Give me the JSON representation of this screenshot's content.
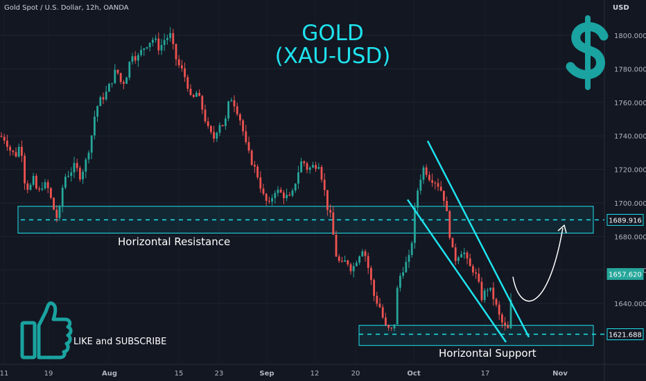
{
  "header": {
    "symbol_line": "Gold Spot / U.S. Dollar, 12h, OANDA",
    "currency": "USD"
  },
  "title": {
    "line1": "GOLD",
    "line2": "(XAU-USD)"
  },
  "annotations": {
    "resistance": "Horizontal Resistance",
    "support": "Horizontal Support",
    "like": "LIKE and SUBSCRIBE"
  },
  "icons": [
    "dollar-sign-icon",
    "thumbs-up-icon"
  ],
  "colors": {
    "background": "#131722",
    "up_candle": "#26a69a",
    "down_candle": "#ef5350",
    "accent": "#1ee3ee",
    "dollar": "#1aa3a0"
  },
  "chart_data": {
    "type": "candlestick",
    "title": "GOLD (XAU-USD)",
    "ylabel": "USD",
    "ylim": [
      1616.8,
      1821.2
    ],
    "y_ticks": [
      "1800.000",
      "1780.000",
      "1760.000",
      "1740.000",
      "1720.000",
      "1700.000",
      "1680.000",
      "1660.000",
      "1640.000"
    ],
    "x_ticks": [
      "11",
      "19",
      "Aug",
      "15",
      "23",
      "Sep",
      "12",
      "20",
      "Oct",
      "17",
      "Nov"
    ],
    "price_labels": {
      "resistance": "1689.916",
      "current": "1657.620",
      "support": "1621.688"
    },
    "levels": {
      "resistance": 1689.916,
      "current": 1657.62,
      "support": 1621.688,
      "resistance_zone": [
        1682,
        1698
      ],
      "support_zone": [
        1615,
        1627
      ]
    },
    "price_path": [
      [
        0,
        1740
      ],
      [
        8,
        1738
      ],
      [
        14,
        1732
      ],
      [
        22,
        1728
      ],
      [
        30,
        1736
      ],
      [
        36,
        1712
      ],
      [
        42,
        1708
      ],
      [
        48,
        1714
      ],
      [
        55,
        1705
      ],
      [
        62,
        1712
      ],
      [
        70,
        1708
      ],
      [
        76,
        1698
      ],
      [
        84,
        1689
      ],
      [
        92,
        1715
      ],
      [
        100,
        1718
      ],
      [
        108,
        1722
      ],
      [
        116,
        1716
      ],
      [
        124,
        1725
      ],
      [
        132,
        1740
      ],
      [
        138,
        1756
      ],
      [
        146,
        1762
      ],
      [
        154,
        1766
      ],
      [
        160,
        1772
      ],
      [
        168,
        1780
      ],
      [
        176,
        1770
      ],
      [
        184,
        1778
      ],
      [
        190,
        1790
      ],
      [
        198,
        1786
      ],
      [
        206,
        1792
      ],
      [
        214,
        1796
      ],
      [
        222,
        1798
      ],
      [
        230,
        1792
      ],
      [
        238,
        1798
      ],
      [
        246,
        1800
      ],
      [
        252,
        1788
      ],
      [
        258,
        1782
      ],
      [
        264,
        1778
      ],
      [
        270,
        1772
      ],
      [
        276,
        1760
      ],
      [
        284,
        1766
      ],
      [
        292,
        1756
      ],
      [
        300,
        1744
      ],
      [
        308,
        1738
      ],
      [
        316,
        1748
      ],
      [
        324,
        1746
      ],
      [
        332,
        1764
      ],
      [
        340,
        1758
      ],
      [
        348,
        1748
      ],
      [
        356,
        1732
      ],
      [
        364,
        1724
      ],
      [
        372,
        1716
      ],
      [
        380,
        1704
      ],
      [
        388,
        1698
      ],
      [
        396,
        1708
      ],
      [
        404,
        1706
      ],
      [
        412,
        1704
      ],
      [
        420,
        1702
      ],
      [
        428,
        1716
      ],
      [
        436,
        1726
      ],
      [
        444,
        1720
      ],
      [
        452,
        1722
      ],
      [
        460,
        1724
      ],
      [
        466,
        1712
      ],
      [
        472,
        1698
      ],
      [
        478,
        1690
      ],
      [
        484,
        1670
      ],
      [
        492,
        1662
      ],
      [
        500,
        1666
      ],
      [
        508,
        1660
      ],
      [
        516,
        1668
      ],
      [
        524,
        1674
      ],
      [
        532,
        1660
      ],
      [
        540,
        1644
      ],
      [
        548,
        1638
      ],
      [
        556,
        1626
      ],
      [
        562,
        1624
      ],
      [
        568,
        1624
      ],
      [
        574,
        1652
      ],
      [
        580,
        1660
      ],
      [
        586,
        1664
      ],
      [
        592,
        1668
      ],
      [
        598,
        1694
      ],
      [
        604,
        1712
      ],
      [
        612,
        1722
      ],
      [
        618,
        1716
      ],
      [
        626,
        1714
      ],
      [
        634,
        1710
      ],
      [
        640,
        1704
      ],
      [
        646,
        1690
      ],
      [
        652,
        1672
      ],
      [
        658,
        1666
      ],
      [
        664,
        1672
      ],
      [
        670,
        1670
      ],
      [
        676,
        1662
      ],
      [
        684,
        1660
      ],
      [
        690,
        1652
      ],
      [
        696,
        1642
      ],
      [
        702,
        1650
      ],
      [
        710,
        1646
      ],
      [
        716,
        1638
      ],
      [
        722,
        1630
      ],
      [
        728,
        1626
      ],
      [
        734,
        1624
      ],
      [
        740,
        1657.6
      ]
    ],
    "channel": {
      "upper": [
        [
          617,
          1737
        ],
        [
          763,
          1620
        ]
      ],
      "lower": [
        [
          588,
          1702
        ],
        [
          730,
          1617
        ]
      ]
    },
    "projection": [
      [
        740,
        1656
      ],
      [
        812,
        1685
      ]
    ]
  }
}
